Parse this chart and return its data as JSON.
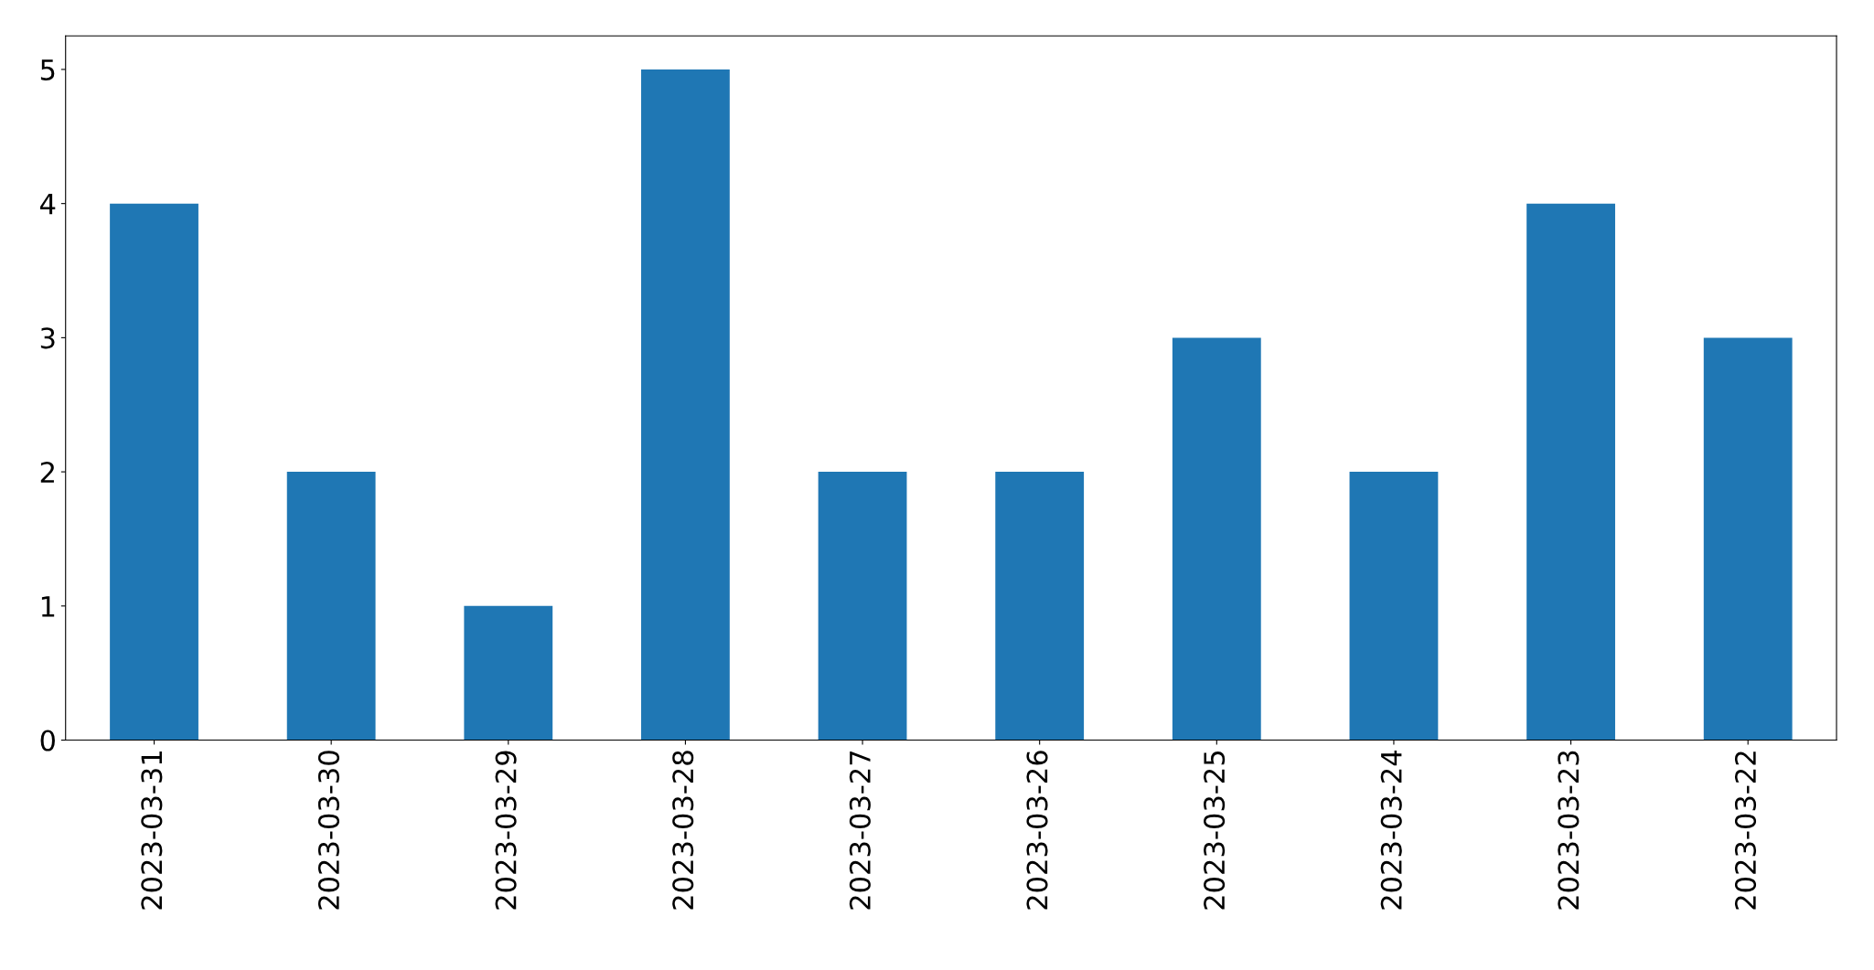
{
  "chart_data": {
    "type": "bar",
    "categories": [
      "2023-03-31",
      "2023-03-30",
      "2023-03-29",
      "2023-03-28",
      "2023-03-27",
      "2023-03-26",
      "2023-03-25",
      "2023-03-24",
      "2023-03-23",
      "2023-03-22"
    ],
    "values": [
      4,
      2,
      1,
      5,
      2,
      2,
      3,
      2,
      4,
      3
    ],
    "color": "#1f77b4",
    "ylim": [
      0,
      5.25
    ],
    "yticks": [
      0,
      1,
      2,
      3,
      4,
      5
    ],
    "grid": false,
    "legend": false
  }
}
